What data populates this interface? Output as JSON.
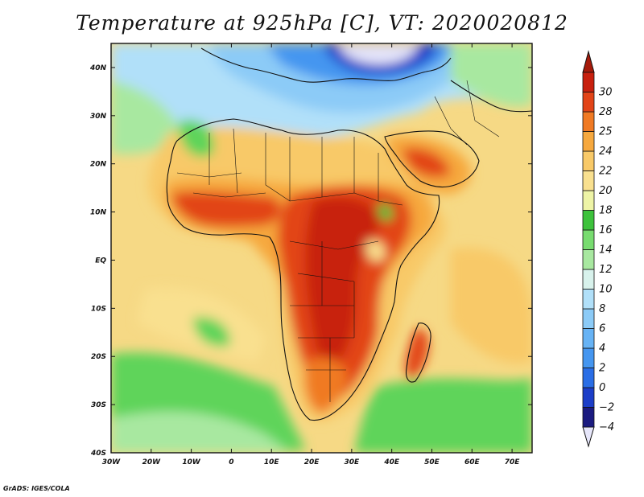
{
  "title": "Temperature at 925hPa [C], VT: 2020020812",
  "credit": "GrADS: IGES/COLA",
  "map": {
    "projection": "latlon",
    "lon_range": [
      -30,
      75
    ],
    "lat_range": [
      -40,
      45
    ],
    "lat_ticks": [
      {
        "lat": 40,
        "label": "40N"
      },
      {
        "lat": 30,
        "label": "30N"
      },
      {
        "lat": 20,
        "label": "20N"
      },
      {
        "lat": 10,
        "label": "10N"
      },
      {
        "lat": 0,
        "label": "EQ"
      },
      {
        "lat": -10,
        "label": "10S"
      },
      {
        "lat": -20,
        "label": "20S"
      },
      {
        "lat": -30,
        "label": "30S"
      },
      {
        "lat": -40,
        "label": "40S"
      }
    ],
    "lon_ticks": [
      {
        "lon": -30,
        "label": "30W"
      },
      {
        "lon": -20,
        "label": "20W"
      },
      {
        "lon": -10,
        "label": "10W"
      },
      {
        "lon": 0,
        "label": "0"
      },
      {
        "lon": 10,
        "label": "10E"
      },
      {
        "lon": 20,
        "label": "20E"
      },
      {
        "lon": 30,
        "label": "30E"
      },
      {
        "lon": 40,
        "label": "40E"
      },
      {
        "lon": 50,
        "label": "50E"
      },
      {
        "lon": 60,
        "label": "60E"
      },
      {
        "lon": 70,
        "label": "70E"
      }
    ],
    "ocean_background": "#f6d985"
  },
  "colorbar": {
    "levels": [
      "-4",
      "-2",
      "0",
      "2",
      "4",
      "6",
      "8",
      "10",
      "12",
      "14",
      "16",
      "18",
      "20",
      "22",
      "24",
      "25",
      "28",
      "30"
    ],
    "colors": [
      "#1b1b80",
      "#1c3ec8",
      "#2a6ee6",
      "#4596f0",
      "#67b3f5",
      "#8ccbf7",
      "#b1e0f9",
      "#d8f2ec",
      "#a8e8a0",
      "#78dc70",
      "#3dc23c",
      "#eef4a6",
      "#f9e08f",
      "#f8c968",
      "#f6a83e",
      "#f07a24",
      "#e24418",
      "#c8200e"
    ],
    "under_color": "#e6e6fa",
    "over_color": "#a51a0a"
  }
}
